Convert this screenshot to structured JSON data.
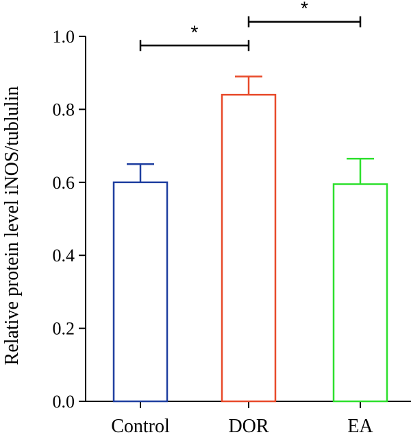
{
  "chart_data": {
    "type": "bar",
    "ylabel": "Relative protein level iNOS/tublulin",
    "ylim": [
      0,
      1.0
    ],
    "yticks": [
      "0.0",
      "0.2",
      "0.4",
      "0.6",
      "0.8",
      "1.0"
    ],
    "categories": [
      "Control",
      "DOR",
      "EA"
    ],
    "values": [
      0.6,
      0.84,
      0.595
    ],
    "errors": [
      0.05,
      0.05,
      0.07
    ],
    "colors": [
      "#1f3fa0",
      "#e84a2a",
      "#2de02d"
    ],
    "significance": [
      {
        "from": 0,
        "to": 1,
        "label": "*",
        "y": 0.975
      },
      {
        "from": 1,
        "to": 2,
        "label": "*",
        "y": 1.04
      }
    ],
    "grid": false
  }
}
